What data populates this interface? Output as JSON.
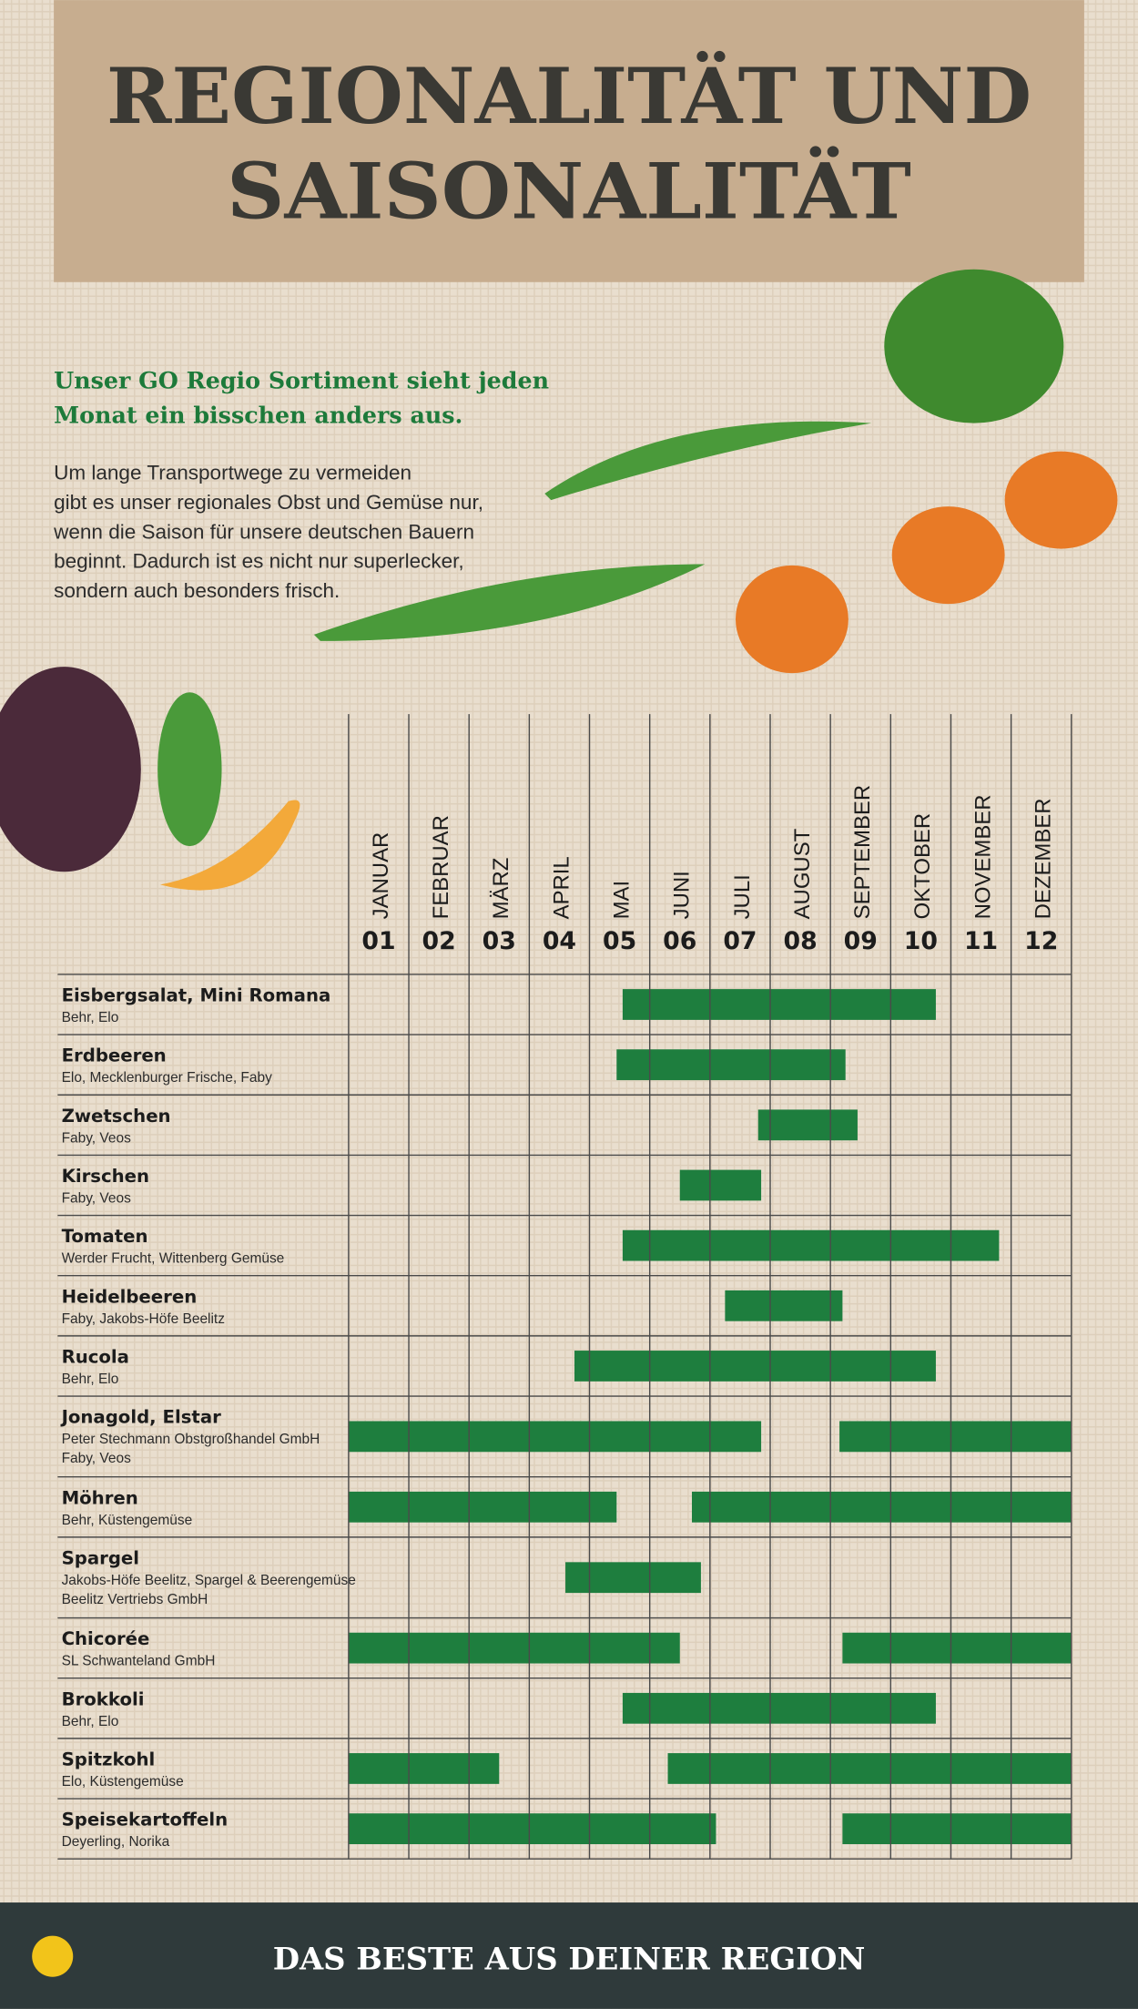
{
  "header": {
    "title_lines": [
      "REGIONALITÄT UND",
      "SAISONALITÄT"
    ]
  },
  "intro": {
    "headline_lines": [
      "Unser GO Regio Sortiment sieht jeden",
      "Monat ein bisschen anders aus."
    ],
    "body_lines": [
      "Um lange Transportwege zu vermeiden",
      "gibt es unser regionales Obst und Gemüse nur,",
      "wenn die Saison für unsere deutschen Bauern",
      "beginnt. Dadurch ist es nicht nur superlecker,",
      "sondern auch besonders frisch."
    ]
  },
  "calendar": {
    "xlim": [
      0,
      12
    ],
    "months": [
      {
        "name": "JANUAR",
        "number": "01"
      },
      {
        "name": "FEBRUAR",
        "number": "02"
      },
      {
        "name": "MÄRZ",
        "number": "03"
      },
      {
        "name": "APRIL",
        "number": "04"
      },
      {
        "name": "MAI",
        "number": "05"
      },
      {
        "name": "JUNI",
        "number": "06"
      },
      {
        "name": "JULI",
        "number": "07"
      },
      {
        "name": "AUGUST",
        "number": "08"
      },
      {
        "name": "SEPTEMBER",
        "number": "09"
      },
      {
        "name": "OKTOBER",
        "number": "10"
      },
      {
        "name": "NOVEMBER",
        "number": "11"
      },
      {
        "name": "DEZEMBER",
        "number": "12"
      }
    ],
    "rows": [
      {
        "name": "Eisbergsalat, Mini Romana",
        "suppliers": [
          "Behr, Elo"
        ],
        "seasons": [
          [
            4.55,
            9.75
          ]
        ]
      },
      {
        "name": "Erdbeeren",
        "suppliers": [
          "Elo, Mecklenburger Frische, Faby"
        ],
        "seasons": [
          [
            4.45,
            8.25
          ]
        ]
      },
      {
        "name": "Zwetschen",
        "suppliers": [
          "Faby, Veos"
        ],
        "seasons": [
          [
            6.8,
            8.45
          ]
        ]
      },
      {
        "name": "Kirschen",
        "suppliers": [
          "Faby, Veos"
        ],
        "seasons": [
          [
            5.5,
            6.85
          ]
        ]
      },
      {
        "name": "Tomaten",
        "suppliers": [
          "Werder Frucht, Wittenberg Gemüse"
        ],
        "seasons": [
          [
            4.55,
            10.8
          ]
        ]
      },
      {
        "name": "Heidelbeeren",
        "suppliers": [
          "Faby, Jakobs-Höfe Beelitz"
        ],
        "seasons": [
          [
            6.25,
            8.2
          ]
        ]
      },
      {
        "name": "Rucola",
        "suppliers": [
          "Behr, Elo"
        ],
        "seasons": [
          [
            3.75,
            9.75
          ]
        ]
      },
      {
        "name": "Jonagold, Elstar",
        "suppliers": [
          "Peter Stechmann Obstgroßhandel GmbH",
          "Faby, Veos"
        ],
        "seasons": [
          [
            0,
            6.85
          ],
          [
            8.15,
            12
          ]
        ]
      },
      {
        "name": "Möhren",
        "suppliers": [
          "Behr, Küstengemüse"
        ],
        "seasons": [
          [
            0,
            4.45
          ],
          [
            5.7,
            12
          ]
        ]
      },
      {
        "name": "Spargel",
        "suppliers": [
          "Jakobs-Höfe Beelitz, Spargel & Beerengemüse",
          "Beelitz Vertriebs GmbH"
        ],
        "seasons": [
          [
            3.6,
            5.85
          ]
        ]
      },
      {
        "name": "Chicorée",
        "suppliers": [
          "SL Schwanteland GmbH"
        ],
        "seasons": [
          [
            0,
            5.5
          ],
          [
            8.2,
            12
          ]
        ]
      },
      {
        "name": "Brokkoli",
        "suppliers": [
          "Behr, Elo"
        ],
        "seasons": [
          [
            4.55,
            9.75
          ]
        ]
      },
      {
        "name": "Spitzkohl",
        "suppliers": [
          "Elo, Küstengemüse"
        ],
        "seasons": [
          [
            0,
            2.5
          ],
          [
            5.3,
            12
          ]
        ]
      },
      {
        "name": "Speisekartoffeln",
        "suppliers": [
          "Deyerling, Norika"
        ],
        "seasons": [
          [
            0,
            6.1
          ],
          [
            8.2,
            12
          ]
        ]
      }
    ]
  },
  "footer": {
    "slogan": "DAS BESTE AUS DEINER REGION"
  }
}
